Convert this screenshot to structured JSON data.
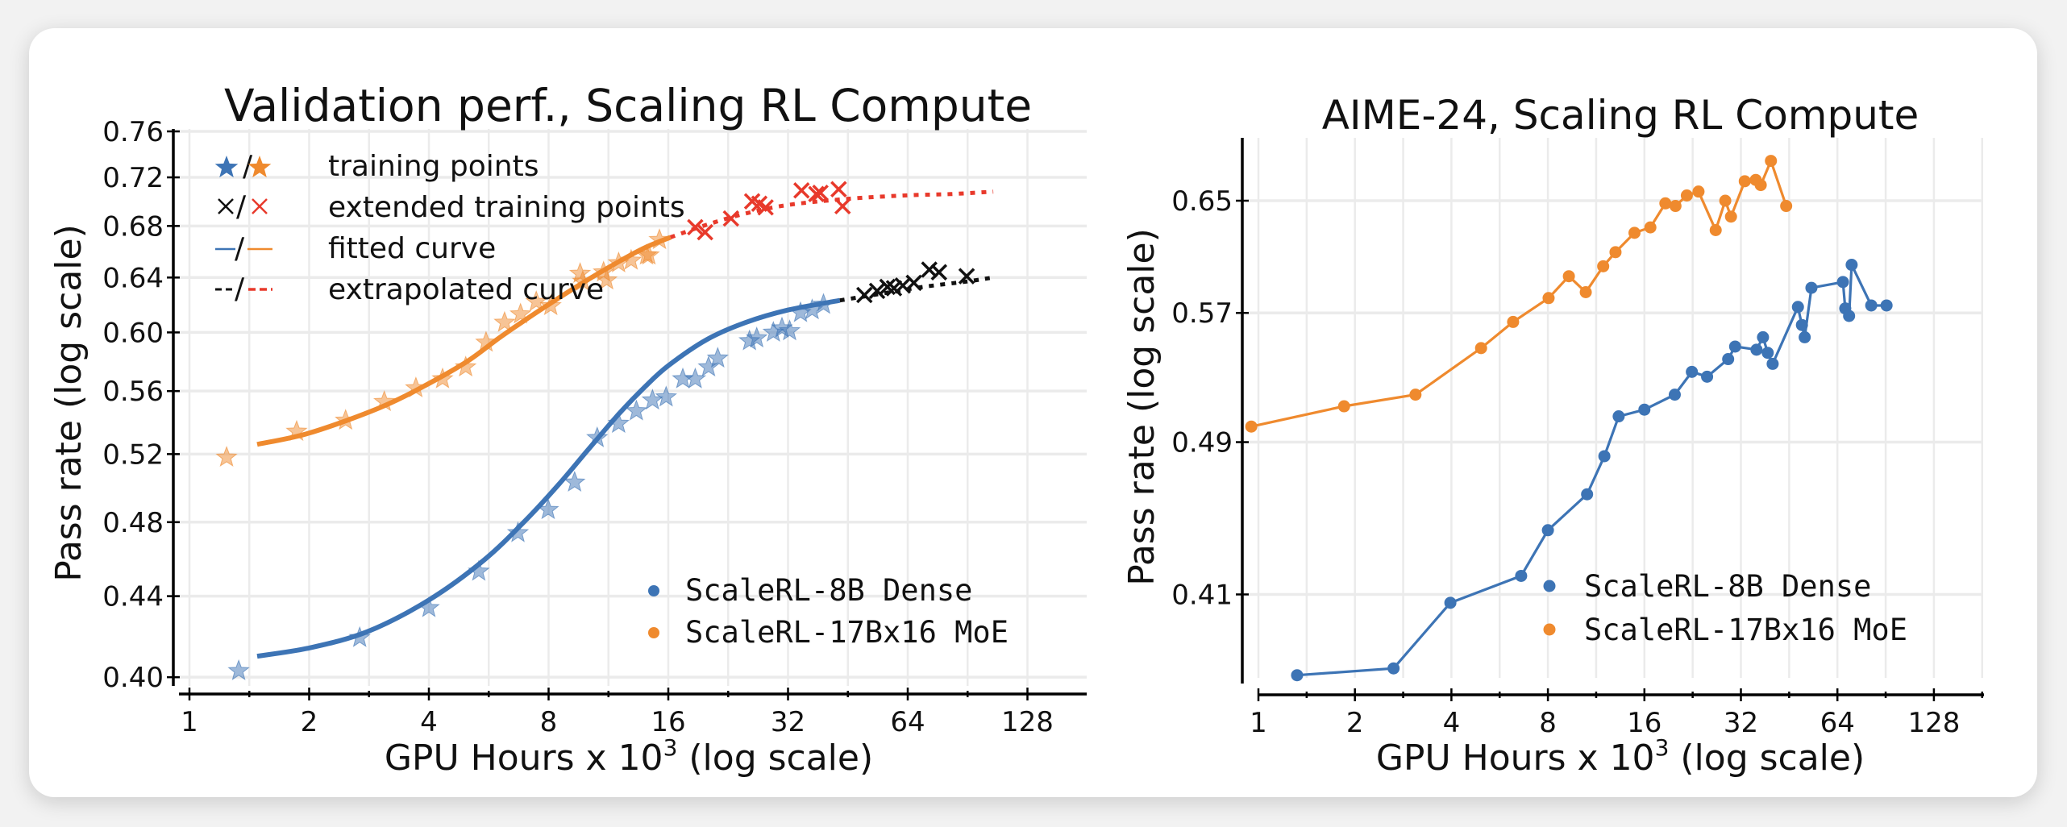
{
  "colors": {
    "dense": "#3d74b5",
    "moe": "#ef8a2e",
    "extended_moe": "#e8392b",
    "extended_dense": "#111111",
    "grid": "#ebebeb"
  },
  "chart_data": [
    {
      "type": "scatter",
      "title": "Validation perf., Scaling RL Compute",
      "xlabel": "GPU Hours x 10",
      "xlabel_sup": "3",
      "xlabel_suffix": " (log scale)",
      "ylabel": "Pass rate (log scale)",
      "xscale": "log2",
      "yscale": "log",
      "xlim": [
        0.92,
        180
      ],
      "ylim": [
        0.4,
        0.76
      ],
      "grid": true,
      "x_ticks": [
        1,
        2,
        4,
        8,
        16,
        32,
        64,
        128
      ],
      "x_tick_labels": [
        "1",
        "2",
        "4",
        "8",
        "16",
        "32",
        "64",
        "128"
      ],
      "y_ticks": [
        0.4,
        0.44,
        0.48,
        0.52,
        0.56,
        0.6,
        0.64,
        0.68,
        0.72,
        0.76
      ],
      "y_tick_labels": [
        "0.40",
        "0.44",
        "0.48",
        "0.52",
        "0.56",
        "0.60",
        "0.64",
        "0.68",
        "0.72",
        "0.76"
      ],
      "legend_markers": {
        "placement": "top-left",
        "entries": [
          {
            "label": "training points",
            "glyph_sep": "/"
          },
          {
            "label": "extended training points",
            "glyph_sep": "/"
          },
          {
            "label": "fitted curve",
            "glyph_sep": "/"
          },
          {
            "label": "extrapolated curve",
            "glyph_sep": "/"
          }
        ]
      },
      "legend_series": {
        "placement": "lower-right",
        "entries": [
          "ScaleRL-8B Dense",
          "ScaleRL-17Bx16 MoE"
        ]
      },
      "series": [
        {
          "name": "ScaleRL-8B Dense",
          "training_points": [
            [
              1.33,
              0.403
            ],
            [
              2.68,
              0.419
            ],
            [
              4.0,
              0.434
            ],
            [
              5.34,
              0.453
            ],
            [
              6.7,
              0.474
            ],
            [
              7.98,
              0.487
            ],
            [
              9.3,
              0.503
            ],
            [
              10.6,
              0.53
            ],
            [
              12.0,
              0.539
            ],
            [
              13.3,
              0.547
            ],
            [
              14.6,
              0.554
            ],
            [
              15.8,
              0.556
            ],
            [
              17.4,
              0.568
            ],
            [
              18.7,
              0.568
            ],
            [
              20.2,
              0.576
            ],
            [
              21.3,
              0.582
            ],
            [
              25.6,
              0.594
            ],
            [
              26.7,
              0.596
            ],
            [
              29.4,
              0.6
            ],
            [
              30.9,
              0.603
            ],
            [
              32.3,
              0.601
            ],
            [
              34.4,
              0.614
            ],
            [
              36.8,
              0.616
            ],
            [
              39.3,
              0.62
            ]
          ],
          "extended_points": [
            [
              49.8,
              0.627
            ],
            [
              53.6,
              0.63
            ],
            [
              56.9,
              0.633
            ],
            [
              59.1,
              0.632
            ],
            [
              62.2,
              0.634
            ],
            [
              66.3,
              0.636
            ],
            [
              72.5,
              0.646
            ],
            [
              76.7,
              0.644
            ],
            [
              90,
              0.641
            ]
          ],
          "fitted_curve": [
            [
              1.48,
              0.41
            ],
            [
              2,
              0.414
            ],
            [
              2.8,
              0.422
            ],
            [
              4,
              0.438
            ],
            [
              5.5,
              0.459
            ],
            [
              7,
              0.481
            ],
            [
              8.5,
              0.502
            ],
            [
              10,
              0.522
            ],
            [
              12,
              0.545
            ],
            [
              14,
              0.563
            ],
            [
              16,
              0.577
            ],
            [
              20,
              0.595
            ],
            [
              25,
              0.607
            ],
            [
              32,
              0.616
            ],
            [
              43.2,
              0.623
            ]
          ],
          "extrapolated_curve": [
            [
              43.2,
              0.623
            ],
            [
              55,
              0.628
            ],
            [
              70,
              0.633
            ],
            [
              90,
              0.637
            ],
            [
              105,
              0.64
            ]
          ]
        },
        {
          "name": "ScaleRL-17Bx16 MoE",
          "training_points": [
            [
              1.24,
              0.518
            ],
            [
              1.86,
              0.534
            ],
            [
              2.47,
              0.541
            ],
            [
              3.09,
              0.553
            ],
            [
              3.71,
              0.562
            ],
            [
              4.33,
              0.568
            ],
            [
              4.95,
              0.576
            ],
            [
              5.57,
              0.593
            ],
            [
              6.2,
              0.607
            ],
            [
              6.8,
              0.613
            ],
            [
              7.45,
              0.622
            ],
            [
              8.1,
              0.619
            ],
            [
              9.6,
              0.643
            ],
            [
              9.75,
              0.637
            ],
            [
              11.0,
              0.644
            ],
            [
              11.2,
              0.638
            ],
            [
              12.0,
              0.651
            ],
            [
              12.9,
              0.653
            ],
            [
              14.1,
              0.657
            ],
            [
              14.3,
              0.657
            ],
            [
              15.2,
              0.669
            ]
          ],
          "extended_points": [
            [
              18.7,
              0.679
            ],
            [
              19.8,
              0.675
            ],
            [
              23.0,
              0.686
            ],
            [
              26.0,
              0.7
            ],
            [
              27.1,
              0.698
            ],
            [
              28.1,
              0.695
            ],
            [
              34.6,
              0.709
            ],
            [
              37.7,
              0.706
            ],
            [
              38.6,
              0.707
            ],
            [
              42.9,
              0.71
            ],
            [
              43.9,
              0.696
            ]
          ],
          "fitted_curve": [
            [
              1.48,
              0.526
            ],
            [
              2,
              0.533
            ],
            [
              3,
              0.549
            ],
            [
              4,
              0.565
            ],
            [
              5,
              0.58
            ],
            [
              6,
              0.596
            ],
            [
              7,
              0.609
            ],
            [
              8,
              0.62
            ],
            [
              10,
              0.638
            ],
            [
              12,
              0.652
            ],
            [
              14,
              0.663
            ],
            [
              16.2,
              0.671
            ]
          ],
          "extrapolated_curve": [
            [
              16.2,
              0.671
            ],
            [
              20,
              0.681
            ],
            [
              25,
              0.69
            ],
            [
              32,
              0.697
            ],
            [
              45,
              0.702
            ],
            [
              64,
              0.705
            ],
            [
              82,
              0.706
            ],
            [
              105,
              0.708
            ]
          ]
        }
      ]
    },
    {
      "type": "line",
      "title": "AIME-24, Scaling RL Compute",
      "xlabel": "GPU Hours x 10",
      "xlabel_sup": "3",
      "xlabel_suffix": " (log scale)",
      "ylabel": "Pass rate (log scale)",
      "xscale": "log2",
      "yscale": "log",
      "xlim": [
        0.9,
        180
      ],
      "ylim": [
        0.36,
        0.7
      ],
      "grid": true,
      "x_ticks": [
        1,
        2,
        4,
        8,
        16,
        32,
        64,
        128
      ],
      "x_tick_labels": [
        "1",
        "2",
        "4",
        "8",
        "16",
        "32",
        "64",
        "128"
      ],
      "y_ticks": [
        0.41,
        0.49,
        0.57,
        0.65
      ],
      "y_tick_labels": [
        "0.41",
        "0.49",
        "0.57",
        "0.65"
      ],
      "legend": {
        "placement": "lower-right",
        "entries": [
          "ScaleRL-8B Dense",
          "ScaleRL-17Bx16 MoE"
        ]
      },
      "series": [
        {
          "name": "ScaleRL-8B Dense",
          "points": [
            [
              1.32,
              0.373
            ],
            [
              2.64,
              0.376
            ],
            [
              3.97,
              0.406
            ],
            [
              6.6,
              0.419
            ],
            [
              8.0,
              0.442
            ],
            [
              10.6,
              0.461
            ],
            [
              12.0,
              0.482
            ],
            [
              13.3,
              0.505
            ],
            [
              16.0,
              0.509
            ],
            [
              19.9,
              0.518
            ],
            [
              22.5,
              0.532
            ],
            [
              25.1,
              0.529
            ],
            [
              29.2,
              0.54
            ],
            [
              30.7,
              0.548
            ],
            [
              35.8,
              0.546
            ],
            [
              37.5,
              0.554
            ],
            [
              38.8,
              0.544
            ],
            [
              40.2,
              0.537
            ],
            [
              48.2,
              0.574
            ],
            [
              49.6,
              0.562
            ],
            [
              50.6,
              0.554
            ],
            [
              53.1,
              0.587
            ],
            [
              66.6,
              0.591
            ],
            [
              67.7,
              0.573
            ],
            [
              69.6,
              0.568
            ],
            [
              70.9,
              0.603
            ],
            [
              81.6,
              0.575
            ],
            [
              91.1,
              0.575
            ]
          ]
        },
        {
          "name": "ScaleRL-17Bx16 MoE",
          "points": [
            [
              0.95,
              0.499
            ],
            [
              1.85,
              0.511
            ],
            [
              3.09,
              0.518
            ],
            [
              4.95,
              0.547
            ],
            [
              6.23,
              0.564
            ],
            [
              8.04,
              0.58
            ],
            [
              9.3,
              0.595
            ],
            [
              10.5,
              0.584
            ],
            [
              11.9,
              0.602
            ],
            [
              13.0,
              0.612
            ],
            [
              14.9,
              0.626
            ],
            [
              16.7,
              0.63
            ],
            [
              18.6,
              0.648
            ],
            [
              20.0,
              0.646
            ],
            [
              21.7,
              0.654
            ],
            [
              23.6,
              0.657
            ],
            [
              26.7,
              0.628
            ],
            [
              28.6,
              0.65
            ],
            [
              29.8,
              0.638
            ],
            [
              32.9,
              0.665
            ],
            [
              35.6,
              0.666
            ],
            [
              36.9,
              0.662
            ],
            [
              39.7,
              0.681
            ],
            [
              44.3,
              0.646
            ]
          ]
        }
      ]
    }
  ]
}
